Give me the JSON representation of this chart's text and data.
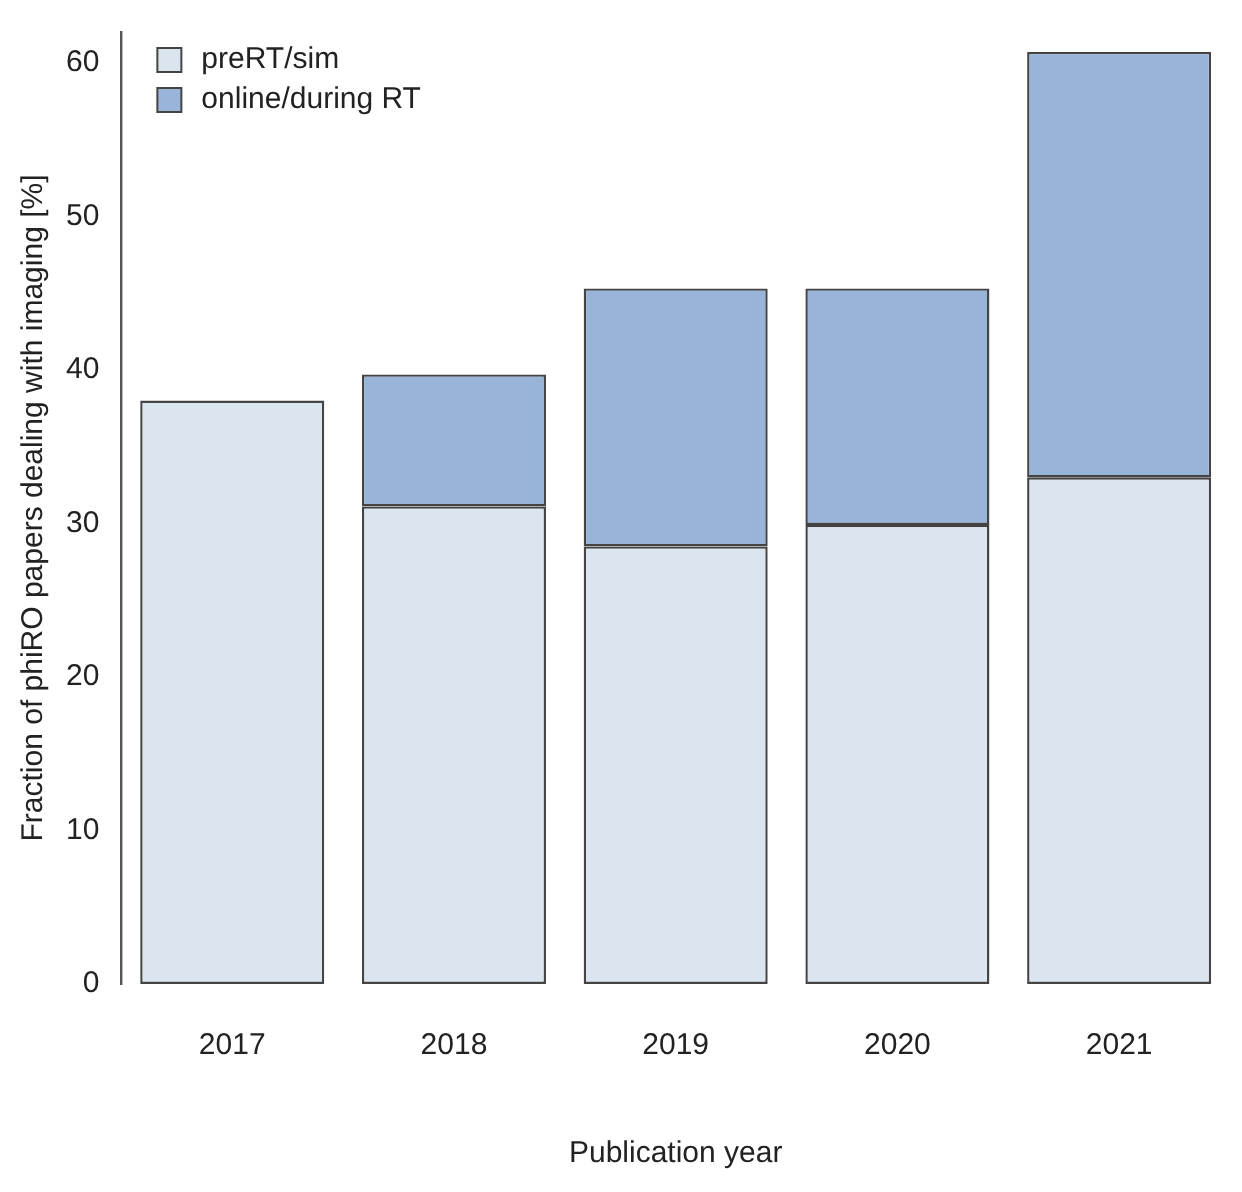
{
  "chart_data": {
    "type": "bar",
    "stacked": true,
    "xlabel": "Publication year",
    "ylabel": "Fraction of phiRO papers dealing with imaging [%]",
    "categories": [
      "2017",
      "2018",
      "2019",
      "2020",
      "2021"
    ],
    "series": [
      {
        "name": "preRT/sim",
        "color": "#dae5f0",
        "values": [
          38.0,
          31.1,
          28.5,
          29.9,
          33.0
        ]
      },
      {
        "name": "online/during RT",
        "color": "#98b4d8",
        "values": [
          0,
          8.6,
          16.8,
          15.4,
          27.7
        ]
      }
    ],
    "ylim": [
      0,
      62
    ],
    "yticks": [
      0,
      10,
      20,
      30,
      40,
      50,
      60
    ],
    "grid": false,
    "legend": "top left"
  }
}
